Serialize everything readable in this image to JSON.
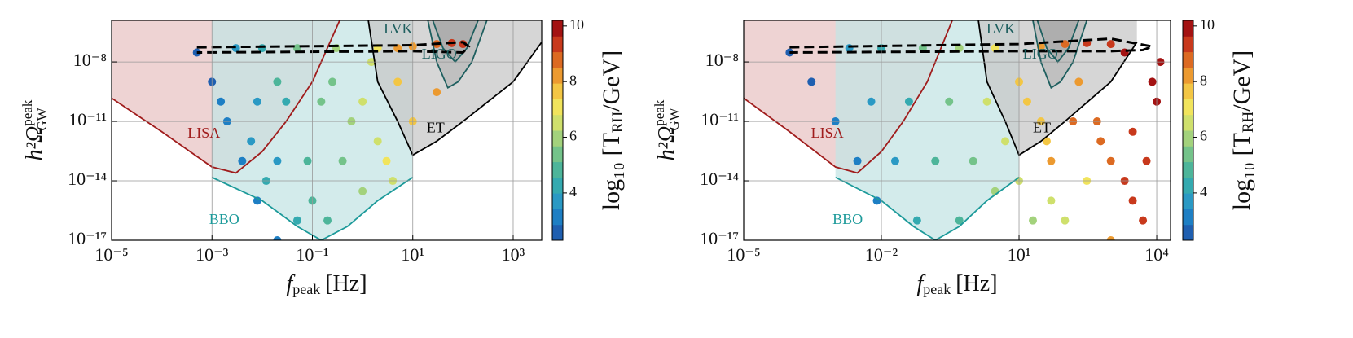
{
  "chart_data": [
    {
      "type": "scatter",
      "xlabel": {
        "main": "f",
        "sub": "peak",
        "unit": "[Hz]"
      },
      "ylabel": {
        "main": "h²Ω",
        "sup": "peak",
        "sub": "GW"
      },
      "colorbar_label": {
        "pre": "log₁₀ [T",
        "sub": "RH",
        "post": "/GeV]"
      },
      "xlim": [
        1e-05,
        3700
      ],
      "ylim": [
        1e-17,
        1.26e-06
      ],
      "log_x": true,
      "log_y": true,
      "grid": true,
      "xticks": [
        {
          "value": 1e-05,
          "label": "10⁻⁵"
        },
        {
          "value": 0.001,
          "label": "10⁻³"
        },
        {
          "value": 0.1,
          "label": "10⁻¹"
        },
        {
          "value": 10,
          "label": "10¹"
        },
        {
          "value": 1000,
          "label": "10³"
        }
      ],
      "yticks": [
        {
          "value": 1e-17,
          "label": "10⁻¹⁷"
        },
        {
          "value": 1e-14,
          "label": "10⁻¹⁴"
        },
        {
          "value": 1e-11,
          "label": "10⁻¹¹"
        },
        {
          "value": 1e-08,
          "label": "10⁻⁸"
        }
      ],
      "clim": [
        2.3,
        10.2
      ],
      "cticks": [
        4,
        6,
        8,
        10
      ],
      "colormap": [
        "#1f5fb0",
        "#1e7fc4",
        "#2a99c4",
        "#34aab0",
        "#4db59a",
        "#74c38a",
        "#a3d27c",
        "#cfe06c",
        "#f1e45c",
        "#f3c644",
        "#ec9a30",
        "#dc6a22",
        "#c8391c",
        "#a31212"
      ],
      "points": {
        "x": [
          0.0005,
          0.001,
          0.002,
          0.004,
          0.008,
          0.02,
          0.003,
          0.008,
          0.02,
          0.05,
          0.01,
          0.03,
          0.08,
          0.2,
          0.05,
          0.15,
          0.4,
          1,
          0.3,
          1,
          2,
          4,
          2,
          5,
          10,
          10,
          30,
          60,
          100,
          30,
          5,
          0.0015,
          0.006,
          0.012,
          0.1,
          0.6,
          3,
          0.02,
          0.25,
          1.5
        ],
        "y": [
          3e-08,
          1e-09,
          1e-11,
          1e-13,
          1e-15,
          1e-17,
          5e-08,
          1e-10,
          1e-13,
          1e-16,
          5e-08,
          1e-10,
          1e-13,
          1e-16,
          5e-08,
          1e-10,
          1e-13,
          3e-15,
          5e-08,
          1e-10,
          1e-12,
          1e-14,
          5e-08,
          1e-09,
          1e-11,
          6e-08,
          8e-08,
          9e-08,
          8e-08,
          3e-10,
          5e-08,
          1e-10,
          1e-12,
          1e-14,
          1e-15,
          1e-11,
          1e-13,
          1e-09,
          1e-09,
          1e-08
        ],
        "c": [
          2.6,
          2.8,
          3.0,
          3.1,
          3.2,
          3.3,
          3.5,
          3.7,
          3.9,
          4.1,
          4.3,
          4.5,
          4.7,
          4.9,
          5.2,
          5.4,
          5.6,
          5.8,
          6.2,
          6.4,
          6.6,
          6.8,
          7.2,
          7.5,
          7.8,
          8.2,
          8.8,
          9.2,
          9.5,
          8.4,
          8.0,
          3.2,
          3.6,
          4.0,
          4.8,
          5.8,
          6.9,
          4.6,
          5.6,
          6.8
        ]
      },
      "boundary": {
        "x": [
          0.0005,
          10,
          100,
          130,
          100,
          10,
          0.0005
        ],
        "y": [
          5.5e-08,
          7e-08,
          1e-07,
          6e-08,
          3e-08,
          3.5e-08,
          3e-08
        ],
        "color": "#000000",
        "dashed": true
      },
      "curves": [
        {
          "name": "LISA",
          "color": "#a01c1c",
          "fill": "#e8c4c4",
          "x": [
            1e-05,
            0.0001,
            0.001,
            0.003,
            0.01,
            0.03,
            0.1,
            0.35
          ],
          "y": [
            1.5e-10,
            3e-12,
            5e-14,
            2.5e-14,
            3e-13,
            1e-11,
            1e-09,
            1.26e-06
          ]
        },
        {
          "name": "BBO",
          "color": "#1c9a9a",
          "fill": "#c4e4e4",
          "x": [
            0.001,
            0.01,
            0.05,
            0.15,
            0.5,
            2,
            10
          ],
          "y": [
            1.5e-14,
            1e-15,
            5e-17,
            1e-17,
            5e-17,
            1e-15,
            1.5e-14
          ]
        },
        {
          "name": "ET",
          "color": "#000000",
          "fill": "#c8c8c8",
          "x": [
            1.3,
            2,
            5,
            10,
            30,
            100,
            1000,
            3700
          ],
          "y": [
            1.26e-06,
            1e-09,
            1e-11,
            2e-13,
            1e-12,
            1e-11,
            1e-09,
            1e-07
          ]
        },
        {
          "name": "LIGO",
          "color": "#1e5f5f",
          "fill": "#b8b8b8",
          "x": [
            20,
            30,
            50,
            80,
            150,
            300
          ],
          "y": [
            1.26e-06,
            1e-08,
            5e-10,
            1e-09,
            1e-08,
            1.26e-06
          ]
        },
        {
          "name": "LVK",
          "color": "#1e5f5f",
          "fill": "#a8a8a8",
          "x": [
            25,
            40,
            70,
            120,
            200
          ],
          "y": [
            1.26e-06,
            5e-08,
            1e-08,
            5e-08,
            1.26e-06
          ]
        }
      ]
    },
    {
      "type": "scatter",
      "xlabel": {
        "main": "f",
        "sub": "peak",
        "unit": "[Hz]"
      },
      "ylabel": {
        "main": "h²Ω",
        "sup": "peak",
        "sub": "GW"
      },
      "colorbar_label": {
        "pre": "log₁₀ [T",
        "sub": "RH",
        "post": "/GeV]"
      },
      "xlim": [
        1e-05,
        20000
      ],
      "ylim": [
        1e-17,
        1.26e-06
      ],
      "log_x": true,
      "log_y": true,
      "grid": true,
      "xticks": [
        {
          "value": 1e-05,
          "label": "10⁻⁵"
        },
        {
          "value": 0.01,
          "label": "10⁻²"
        },
        {
          "value": 10,
          "label": "10¹"
        },
        {
          "value": 10000,
          "label": "10⁴"
        }
      ],
      "yticks": [
        {
          "value": 1e-17,
          "label": "10⁻¹⁷"
        },
        {
          "value": 1e-14,
          "label": "10⁻¹⁴"
        },
        {
          "value": 1e-11,
          "label": "10⁻¹¹"
        },
        {
          "value": 1e-08,
          "label": "10⁻⁸"
        }
      ],
      "clim": [
        2.3,
        10.2
      ],
      "cticks": [
        4,
        6,
        8,
        10
      ],
      "colormap": [
        "#1f5fb0",
        "#1e7fc4",
        "#2a99c4",
        "#34aab0",
        "#4db59a",
        "#74c38a",
        "#a3d27c",
        "#cfe06c",
        "#f1e45c",
        "#f3c644",
        "#ec9a30",
        "#dc6a22",
        "#c8391c",
        "#a31212"
      ],
      "points": {
        "x": [
          0.0001,
          0.0003,
          0.001,
          0.003,
          0.008,
          0.002,
          0.006,
          0.02,
          0.06,
          0.01,
          0.04,
          0.15,
          0.5,
          0.08,
          0.3,
          1,
          3,
          0.5,
          2,
          5,
          10,
          3,
          10,
          30,
          50,
          30,
          100,
          300,
          1000,
          200,
          500,
          1000,
          3000,
          5000,
          8000,
          2000,
          10000,
          300,
          100,
          50,
          20,
          1000,
          3000,
          15,
          40,
          150,
          600,
          2000,
          6000,
          12000
        ],
        "y": [
          3e-08,
          1e-09,
          1e-11,
          1e-13,
          1e-15,
          5e-08,
          1e-10,
          1e-13,
          1e-16,
          5e-08,
          1e-10,
          1e-13,
          1e-16,
          5e-08,
          1e-10,
          1e-13,
          3e-15,
          5e-08,
          1e-10,
          1e-12,
          1e-14,
          5e-08,
          1e-09,
          1e-11,
          1e-13,
          6e-08,
          8e-08,
          9e-08,
          8e-08,
          1e-09,
          1e-11,
          1e-13,
          1e-15,
          1e-16,
          1e-09,
          3e-08,
          1e-10,
          1e-14,
          1e-16,
          1e-15,
          1e-16,
          1e-17,
          3e-12,
          1e-10,
          1e-12,
          1e-11,
          1e-12,
          1e-14,
          1e-13,
          1e-08
        ],
        "c": [
          2.6,
          2.8,
          3.0,
          3.1,
          3.2,
          3.5,
          3.7,
          3.9,
          4.1,
          4.3,
          4.5,
          4.7,
          4.9,
          5.2,
          5.4,
          5.6,
          5.8,
          6.2,
          6.4,
          6.6,
          6.8,
          7.2,
          7.5,
          7.8,
          8.0,
          8.2,
          8.8,
          9.2,
          9.5,
          8.5,
          8.7,
          9.0,
          9.3,
          9.6,
          9.9,
          9.7,
          10,
          7.0,
          6.8,
          6.5,
          6.2,
          8.2,
          9.4,
          7.6,
          7.9,
          8.6,
          8.9,
          9.1,
          9.5,
          9.8
        ]
      },
      "boundary": {
        "x": [
          0.0001,
          10,
          1000,
          8000,
          5000,
          1000,
          10,
          0.0001
        ],
        "y": [
          5.5e-08,
          8e-08,
          1.5e-07,
          6e-08,
          4e-08,
          3.5e-08,
          3.5e-08,
          3e-08
        ],
        "color": "#000000",
        "dashed": true
      },
      "curves": [
        {
          "name": "LISA",
          "color": "#a01c1c",
          "fill": "#e8c4c4",
          "x": [
            1e-05,
            0.0001,
            0.001,
            0.003,
            0.01,
            0.03,
            0.1,
            0.35
          ],
          "y": [
            1.5e-10,
            3e-12,
            5e-14,
            2.5e-14,
            3e-13,
            1e-11,
            1e-09,
            1.26e-06
          ]
        },
        {
          "name": "BBO",
          "color": "#1c9a9a",
          "fill": "#c4e4e4",
          "x": [
            0.001,
            0.01,
            0.05,
            0.15,
            0.5,
            2,
            10
          ],
          "y": [
            1.5e-14,
            1e-15,
            5e-17,
            1e-17,
            5e-17,
            1e-15,
            1.5e-14
          ]
        },
        {
          "name": "ET",
          "color": "#000000",
          "fill": "#c8c8c8",
          "x": [
            1.3,
            2,
            5,
            10,
            30,
            100,
            1000,
            3700
          ],
          "y": [
            1.26e-06,
            1e-09,
            1e-11,
            2e-13,
            1e-12,
            1e-11,
            1e-09,
            1e-07
          ]
        },
        {
          "name": "LIGO",
          "color": "#1e5f5f",
          "fill": "#b8b8b8",
          "x": [
            20,
            30,
            50,
            80,
            150,
            300
          ],
          "y": [
            1.26e-06,
            1e-08,
            5e-10,
            1e-09,
            1e-08,
            1.26e-06
          ]
        },
        {
          "name": "LVK",
          "color": "#1e5f5f",
          "fill": "#a8a8a8",
          "x": [
            25,
            40,
            70,
            120,
            200
          ],
          "y": [
            1.26e-06,
            5e-08,
            1e-08,
            5e-08,
            1.26e-06
          ]
        }
      ]
    }
  ]
}
